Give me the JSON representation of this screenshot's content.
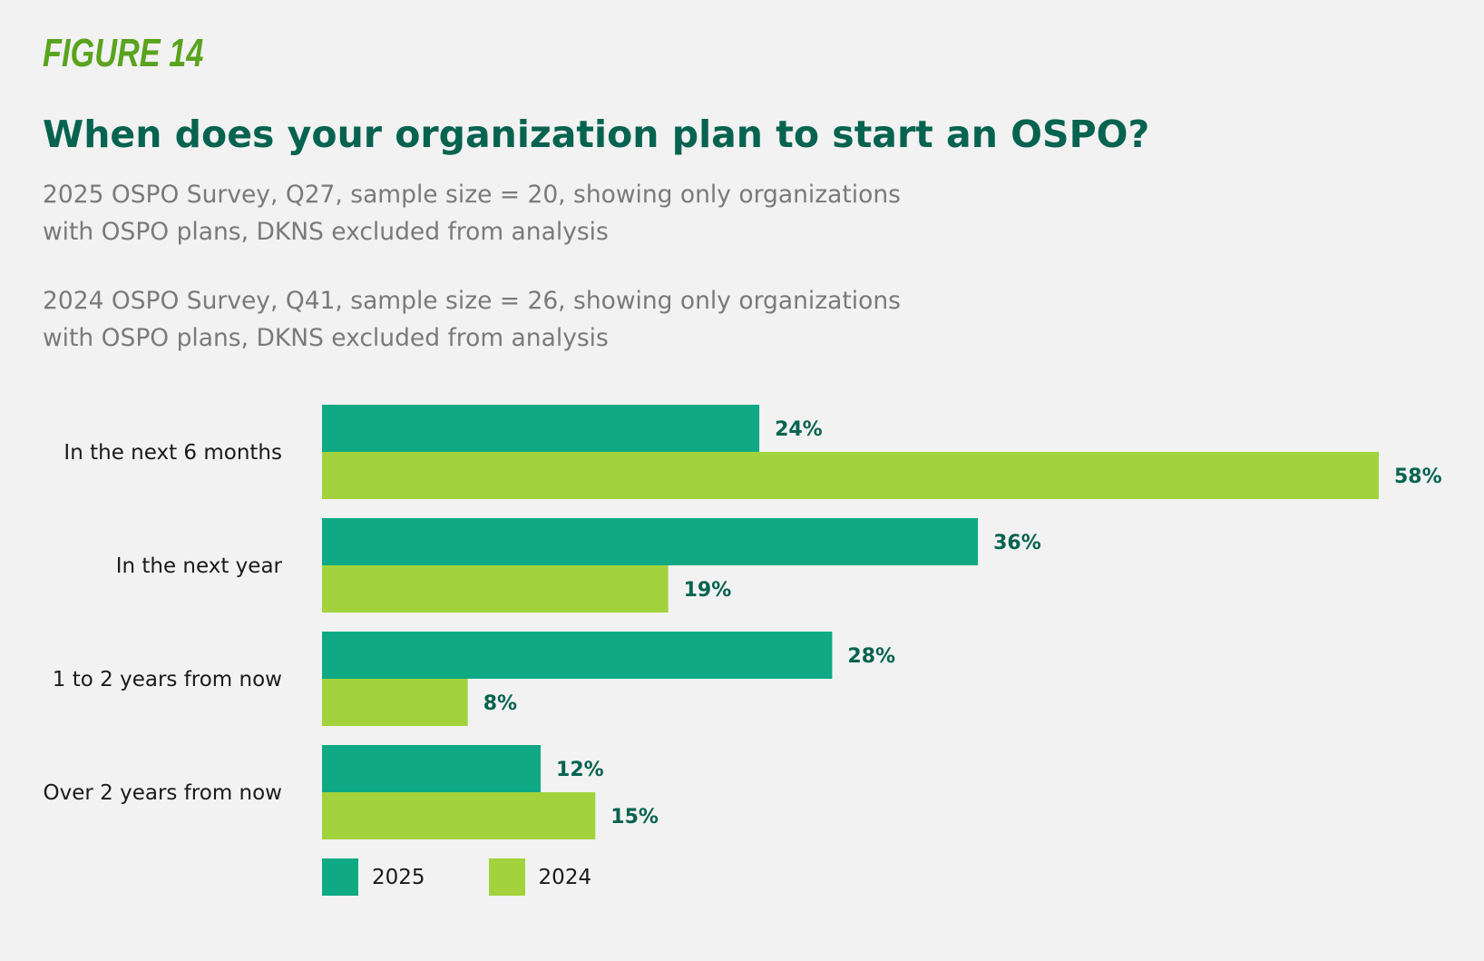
{
  "figure_label": "FIGURE 14",
  "title": "When does your organization plan to start an OSPO?",
  "subtitles": [
    "2025 OSPO Survey, Q27, sample size = 20, showing only organizations with OSPO plans, DKNS excluded from analysis",
    "2024 OSPO Survey, Q41, sample size = 26, showing only organizations with OSPO plans, DKNS excluded from analysis"
  ],
  "colors": {
    "s2025": "#0fa984",
    "s2024": "#a2d33d",
    "label": "#06634f",
    "accent": "#5aa31e"
  },
  "chart_data": {
    "type": "bar",
    "orientation": "horizontal",
    "categories": [
      "In the next 6 months",
      "In the next year",
      "1 to 2 years from now",
      "Over 2 years from now"
    ],
    "series": [
      {
        "name": "2025",
        "values": [
          24,
          36,
          28,
          12
        ],
        "labels": [
          "24%",
          "36%",
          "28%",
          "12%"
        ]
      },
      {
        "name": "2024",
        "values": [
          58,
          19,
          8,
          15
        ],
        "labels": [
          "58%",
          "19%",
          "8%",
          "15%"
        ]
      }
    ],
    "xlim": [
      0,
      58
    ],
    "grid": false,
    "legend_position": "bottom-left"
  }
}
